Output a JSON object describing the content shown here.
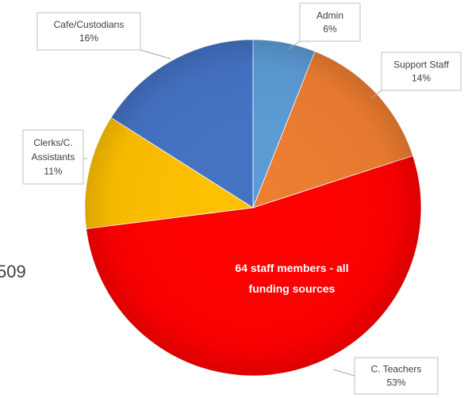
{
  "side_number": "509",
  "center_label": {
    "line1": "64 staff members - all",
    "line2": "funding sources"
  },
  "chart_data": {
    "type": "pie",
    "title": "",
    "categories": [
      "Admin",
      "Support Staff",
      "C. Teachers",
      "Clerks/C. Assistants",
      "Cafe/Custodians"
    ],
    "values": [
      6,
      14,
      53,
      11,
      16
    ],
    "unit": "%",
    "colors": [
      "#5b9bd5",
      "#ed7d31",
      "#ff0000",
      "#ffc000",
      "#4472c4"
    ],
    "labels": [
      {
        "name": "Admin",
        "lines": [
          "Admin",
          "6%"
        ]
      },
      {
        "name": "Support Staff",
        "lines": [
          "Support Staff",
          "14%"
        ]
      },
      {
        "name": "C. Teachers",
        "lines": [
          "C. Teachers",
          "53%"
        ]
      },
      {
        "name": "Clerks/C. Assistants",
        "lines": [
          "Clerks/C.",
          "Assistants",
          "11%"
        ]
      },
      {
        "name": "Cafe/Custodians",
        "lines": [
          "Cafe/Custodians",
          "16%"
        ]
      }
    ]
  }
}
